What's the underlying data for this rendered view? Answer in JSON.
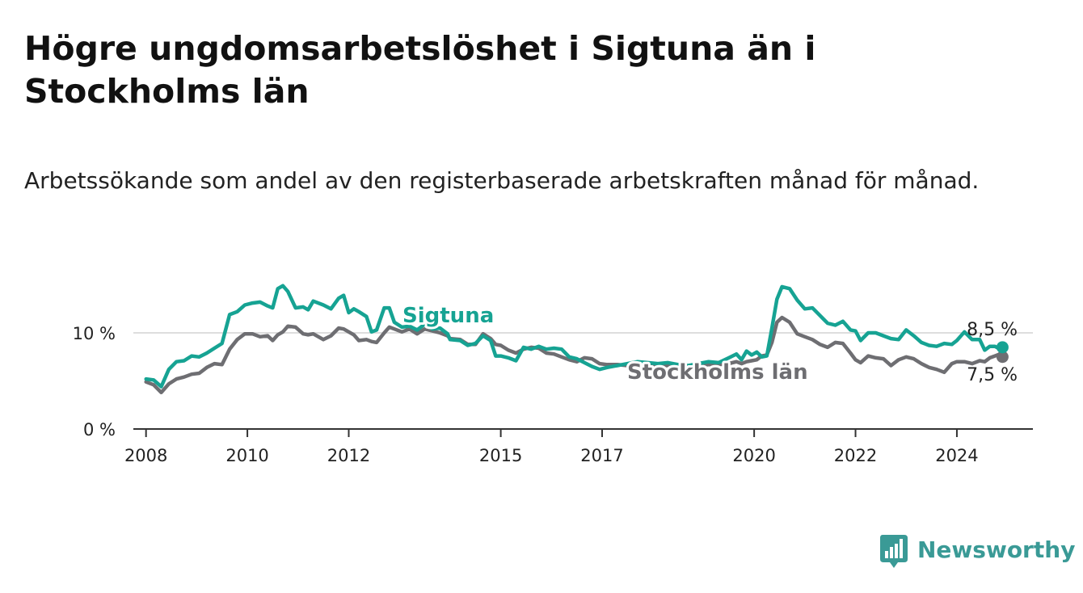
{
  "header": {
    "title": "Högre ungdomsarbetslöshet i Sigtuna än i Stockholms län",
    "subtitle": "Arbetssökande som andel av den registerbaserade arbetskraften månad för månad."
  },
  "brand": {
    "name": "Newsworthy",
    "color": "#3a9a96"
  },
  "chart_data": {
    "type": "line",
    "title": "Högre ungdomsarbetslöshet i Sigtuna än i Stockholms län",
    "subtitle": "Arbetssökande som andel av den registerbaserade arbetskraften månad för månad.",
    "xlabel": "",
    "ylabel": "",
    "xlim": [
      2007.75,
      2025.5
    ],
    "ylim": [
      0,
      15
    ],
    "yticks": [
      {
        "value": 0,
        "label": "0 %"
      },
      {
        "value": 10,
        "label": "10 %"
      }
    ],
    "xticks": [
      {
        "value": 2008,
        "label": "2008"
      },
      {
        "value": 2010,
        "label": "2010"
      },
      {
        "value": 2012,
        "label": "2012"
      },
      {
        "value": 2015,
        "label": "2015"
      },
      {
        "value": 2017,
        "label": "2017"
      },
      {
        "value": 2020,
        "label": "2020"
      },
      {
        "value": 2022,
        "label": "2022"
      },
      {
        "value": 2024,
        "label": "2024"
      }
    ],
    "grid": "horizontal at 10",
    "series": [
      {
        "name": "Sigtuna",
        "color": "#16a393",
        "end_label": "8,5 %",
        "points": [
          [
            2008.0,
            5.2
          ],
          [
            2008.15,
            5.1
          ],
          [
            2008.3,
            4.4
          ],
          [
            2008.45,
            6.2
          ],
          [
            2008.6,
            7.0
          ],
          [
            2008.75,
            7.1
          ],
          [
            2008.9,
            7.6
          ],
          [
            2009.05,
            7.5
          ],
          [
            2009.2,
            7.9
          ],
          [
            2009.35,
            8.4
          ],
          [
            2009.5,
            8.9
          ],
          [
            2009.65,
            11.9
          ],
          [
            2009.8,
            12.2
          ],
          [
            2009.95,
            12.9
          ],
          [
            2010.1,
            13.1
          ],
          [
            2010.25,
            13.2
          ],
          [
            2010.4,
            12.8
          ],
          [
            2010.5,
            12.6
          ],
          [
            2010.6,
            14.6
          ],
          [
            2010.7,
            14.9
          ],
          [
            2010.8,
            14.3
          ],
          [
            2010.95,
            12.6
          ],
          [
            2011.1,
            12.7
          ],
          [
            2011.2,
            12.4
          ],
          [
            2011.3,
            13.3
          ],
          [
            2011.5,
            12.9
          ],
          [
            2011.65,
            12.5
          ],
          [
            2011.8,
            13.6
          ],
          [
            2011.9,
            13.9
          ],
          [
            2012.0,
            12.1
          ],
          [
            2012.1,
            12.5
          ],
          [
            2012.2,
            12.2
          ],
          [
            2012.35,
            11.7
          ],
          [
            2012.45,
            10.1
          ],
          [
            2012.55,
            10.3
          ],
          [
            2012.7,
            12.6
          ],
          [
            2012.8,
            12.6
          ],
          [
            2012.9,
            11.1
          ],
          [
            2013.05,
            10.6
          ],
          [
            2013.2,
            10.7
          ],
          [
            2013.35,
            10.3
          ],
          [
            2013.5,
            10.9
          ],
          [
            2013.65,
            10.4
          ],
          [
            2013.8,
            10.5
          ],
          [
            2013.95,
            9.9
          ],
          [
            2014.0,
            9.3
          ],
          [
            2014.2,
            9.2
          ],
          [
            2014.35,
            8.7
          ],
          [
            2014.5,
            8.9
          ],
          [
            2014.65,
            9.7
          ],
          [
            2014.8,
            9.2
          ],
          [
            2014.9,
            7.6
          ],
          [
            2015.0,
            7.6
          ],
          [
            2015.15,
            7.4
          ],
          [
            2015.3,
            7.1
          ],
          [
            2015.45,
            8.5
          ],
          [
            2015.6,
            8.3
          ],
          [
            2015.75,
            8.6
          ],
          [
            2015.9,
            8.3
          ],
          [
            2016.05,
            8.4
          ],
          [
            2016.2,
            8.3
          ],
          [
            2016.35,
            7.5
          ],
          [
            2016.5,
            7.3
          ],
          [
            2016.65,
            6.9
          ],
          [
            2016.8,
            6.5
          ],
          [
            2016.95,
            6.2
          ],
          [
            2017.1,
            6.4
          ],
          [
            2017.3,
            6.6
          ],
          [
            2017.5,
            6.8
          ],
          [
            2017.7,
            7.0
          ],
          [
            2017.9,
            6.9
          ],
          [
            2018.1,
            6.8
          ],
          [
            2018.3,
            6.9
          ],
          [
            2018.5,
            6.7
          ],
          [
            2018.7,
            6.6
          ],
          [
            2018.9,
            6.8
          ],
          [
            2019.1,
            7.0
          ],
          [
            2019.3,
            6.9
          ],
          [
            2019.5,
            7.4
          ],
          [
            2019.65,
            7.8
          ],
          [
            2019.75,
            7.2
          ],
          [
            2019.85,
            8.1
          ],
          [
            2019.95,
            7.7
          ],
          [
            2020.05,
            8.0
          ],
          [
            2020.15,
            7.5
          ],
          [
            2020.25,
            7.6
          ],
          [
            2020.35,
            10.5
          ],
          [
            2020.45,
            13.5
          ],
          [
            2020.55,
            14.8
          ],
          [
            2020.7,
            14.6
          ],
          [
            2020.85,
            13.4
          ],
          [
            2021.0,
            12.5
          ],
          [
            2021.15,
            12.6
          ],
          [
            2021.3,
            11.8
          ],
          [
            2021.45,
            11.0
          ],
          [
            2021.6,
            10.8
          ],
          [
            2021.75,
            11.2
          ],
          [
            2021.9,
            10.3
          ],
          [
            2022.0,
            10.2
          ],
          [
            2022.1,
            9.2
          ],
          [
            2022.25,
            10.0
          ],
          [
            2022.4,
            10.0
          ],
          [
            2022.55,
            9.7
          ],
          [
            2022.7,
            9.4
          ],
          [
            2022.85,
            9.3
          ],
          [
            2023.0,
            10.3
          ],
          [
            2023.15,
            9.7
          ],
          [
            2023.3,
            9.0
          ],
          [
            2023.45,
            8.7
          ],
          [
            2023.6,
            8.6
          ],
          [
            2023.75,
            8.9
          ],
          [
            2023.9,
            8.8
          ],
          [
            2024.0,
            9.2
          ],
          [
            2024.15,
            10.1
          ],
          [
            2024.3,
            9.3
          ],
          [
            2024.45,
            9.3
          ],
          [
            2024.55,
            8.2
          ],
          [
            2024.65,
            8.6
          ],
          [
            2024.75,
            8.6
          ],
          [
            2024.85,
            8.3
          ],
          [
            2024.9,
            8.5
          ]
        ]
      },
      {
        "name": "Stockholms län",
        "color": "#6e6e72",
        "end_label": "7,5 %",
        "points": [
          [
            2008.0,
            4.9
          ],
          [
            2008.15,
            4.6
          ],
          [
            2008.3,
            3.8
          ],
          [
            2008.45,
            4.7
          ],
          [
            2008.6,
            5.2
          ],
          [
            2008.75,
            5.4
          ],
          [
            2008.9,
            5.7
          ],
          [
            2009.05,
            5.8
          ],
          [
            2009.2,
            6.4
          ],
          [
            2009.35,
            6.8
          ],
          [
            2009.5,
            6.7
          ],
          [
            2009.65,
            8.3
          ],
          [
            2009.8,
            9.3
          ],
          [
            2009.95,
            9.9
          ],
          [
            2010.1,
            9.9
          ],
          [
            2010.25,
            9.6
          ],
          [
            2010.4,
            9.7
          ],
          [
            2010.5,
            9.2
          ],
          [
            2010.6,
            9.8
          ],
          [
            2010.7,
            10.1
          ],
          [
            2010.8,
            10.7
          ],
          [
            2010.95,
            10.6
          ],
          [
            2011.1,
            9.9
          ],
          [
            2011.2,
            9.8
          ],
          [
            2011.3,
            9.9
          ],
          [
            2011.5,
            9.3
          ],
          [
            2011.65,
            9.7
          ],
          [
            2011.8,
            10.5
          ],
          [
            2011.9,
            10.4
          ],
          [
            2012.0,
            10.1
          ],
          [
            2012.1,
            9.8
          ],
          [
            2012.2,
            9.2
          ],
          [
            2012.35,
            9.3
          ],
          [
            2012.45,
            9.1
          ],
          [
            2012.55,
            9.0
          ],
          [
            2012.7,
            10.0
          ],
          [
            2012.8,
            10.6
          ],
          [
            2012.9,
            10.4
          ],
          [
            2013.05,
            10.1
          ],
          [
            2013.2,
            10.4
          ],
          [
            2013.35,
            9.9
          ],
          [
            2013.5,
            10.4
          ],
          [
            2013.65,
            10.2
          ],
          [
            2013.8,
            10.0
          ],
          [
            2013.95,
            9.7
          ],
          [
            2014.0,
            9.4
          ],
          [
            2014.2,
            9.3
          ],
          [
            2014.35,
            8.8
          ],
          [
            2014.5,
            8.8
          ],
          [
            2014.65,
            9.9
          ],
          [
            2014.8,
            9.4
          ],
          [
            2014.9,
            8.8
          ],
          [
            2015.0,
            8.7
          ],
          [
            2015.15,
            8.2
          ],
          [
            2015.3,
            7.9
          ],
          [
            2015.45,
            8.3
          ],
          [
            2015.6,
            8.5
          ],
          [
            2015.75,
            8.4
          ],
          [
            2015.9,
            7.9
          ],
          [
            2016.05,
            7.8
          ],
          [
            2016.2,
            7.5
          ],
          [
            2016.35,
            7.2
          ],
          [
            2016.5,
            7.0
          ],
          [
            2016.65,
            7.4
          ],
          [
            2016.8,
            7.3
          ],
          [
            2016.95,
            6.8
          ],
          [
            2017.1,
            6.7
          ],
          [
            2017.3,
            6.7
          ],
          [
            2017.5,
            6.6
          ],
          [
            2017.7,
            6.8
          ],
          [
            2017.9,
            6.8
          ],
          [
            2018.1,
            6.6
          ],
          [
            2018.3,
            6.6
          ],
          [
            2018.5,
            6.5
          ],
          [
            2018.7,
            6.5
          ],
          [
            2018.9,
            6.6
          ],
          [
            2019.1,
            6.7
          ],
          [
            2019.3,
            6.7
          ],
          [
            2019.5,
            6.8
          ],
          [
            2019.65,
            7.0
          ],
          [
            2019.75,
            6.8
          ],
          [
            2019.85,
            7.0
          ],
          [
            2019.95,
            7.1
          ],
          [
            2020.05,
            7.2
          ],
          [
            2020.15,
            7.6
          ],
          [
            2020.25,
            7.7
          ],
          [
            2020.35,
            9.0
          ],
          [
            2020.45,
            11.1
          ],
          [
            2020.55,
            11.6
          ],
          [
            2020.7,
            11.1
          ],
          [
            2020.85,
            9.9
          ],
          [
            2021.0,
            9.6
          ],
          [
            2021.15,
            9.3
          ],
          [
            2021.3,
            8.8
          ],
          [
            2021.45,
            8.5
          ],
          [
            2021.6,
            9.0
          ],
          [
            2021.75,
            8.9
          ],
          [
            2021.9,
            7.9
          ],
          [
            2022.0,
            7.2
          ],
          [
            2022.1,
            6.9
          ],
          [
            2022.25,
            7.6
          ],
          [
            2022.4,
            7.4
          ],
          [
            2022.55,
            7.3
          ],
          [
            2022.7,
            6.6
          ],
          [
            2022.85,
            7.2
          ],
          [
            2023.0,
            7.5
          ],
          [
            2023.15,
            7.3
          ],
          [
            2023.3,
            6.8
          ],
          [
            2023.45,
            6.4
          ],
          [
            2023.6,
            6.2
          ],
          [
            2023.75,
            5.9
          ],
          [
            2023.9,
            6.8
          ],
          [
            2024.0,
            7.0
          ],
          [
            2024.15,
            7.0
          ],
          [
            2024.3,
            6.8
          ],
          [
            2024.45,
            7.1
          ],
          [
            2024.55,
            7.0
          ],
          [
            2024.65,
            7.4
          ],
          [
            2024.75,
            7.6
          ],
          [
            2024.85,
            7.8
          ],
          [
            2024.9,
            7.5
          ]
        ]
      }
    ]
  }
}
